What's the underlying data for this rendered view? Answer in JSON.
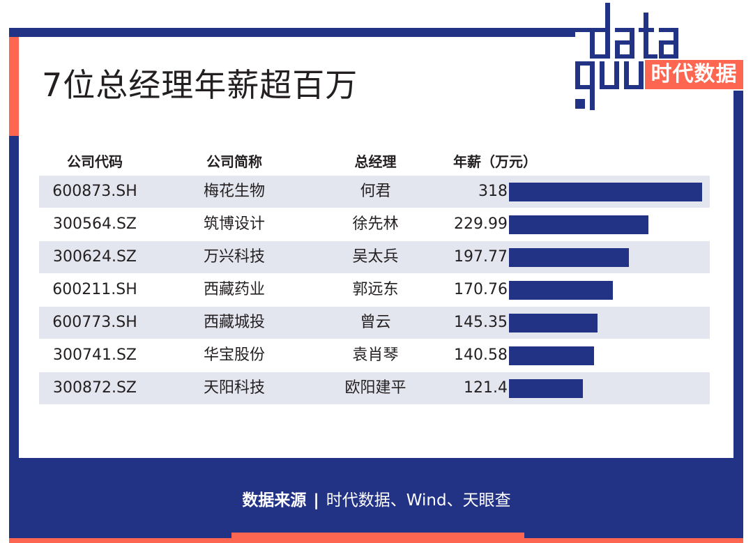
{
  "title": "7位总经理年薪超百万",
  "logo": {
    "latin": "data",
    "latin2": "guu",
    "cn": "时代数据"
  },
  "colors": {
    "navy": "#223285",
    "coral": "#fd6650",
    "row_shade": "#e4e6ef",
    "text": "#231f20"
  },
  "table": {
    "headers": [
      "公司代码",
      "公司简称",
      "总经理",
      "年薪（万元）"
    ],
    "rows": [
      {
        "code": "600873.SH",
        "name": "梅花生物",
        "manager": "何君",
        "salary": "318"
      },
      {
        "code": "300564.SZ",
        "name": "筑博设计",
        "manager": "徐先林",
        "salary": "229.99"
      },
      {
        "code": "300624.SZ",
        "name": "万兴科技",
        "manager": "吴太兵",
        "salary": "197.77"
      },
      {
        "code": "600211.SH",
        "name": "西藏药业",
        "manager": "郭远东",
        "salary": "170.76"
      },
      {
        "code": "600773.SH",
        "name": "西藏城投",
        "manager": "曾云",
        "salary": "145.35"
      },
      {
        "code": "300741.SZ",
        "name": "华宝股份",
        "manager": "袁肖琴",
        "salary": "140.58"
      },
      {
        "code": "300872.SZ",
        "name": "天阳科技",
        "manager": "欧阳建平",
        "salary": "121.4"
      }
    ]
  },
  "footer": {
    "source_label": "数据来源",
    "separator": "|",
    "sources": "时代数据、Wind、天眼查"
  },
  "chart_data": {
    "type": "bar",
    "orientation": "horizontal",
    "title": "7位总经理年薪超百万",
    "xlabel": "年薪（万元）",
    "ylabel": "",
    "categories": [
      "何君（梅花生物）",
      "徐先林（筑博设计）",
      "吴太兵（万兴科技）",
      "郭远东（西藏药业）",
      "曾云（西藏城投）",
      "袁肖琴（华宝股份）",
      "欧阳建平（天阳科技）"
    ],
    "values": [
      318,
      229.99,
      197.77,
      170.76,
      145.35,
      140.58,
      121.4
    ],
    "xlim": [
      0,
      318
    ],
    "grid": false,
    "legend": null,
    "source": "时代数据、Wind、天眼查"
  }
}
